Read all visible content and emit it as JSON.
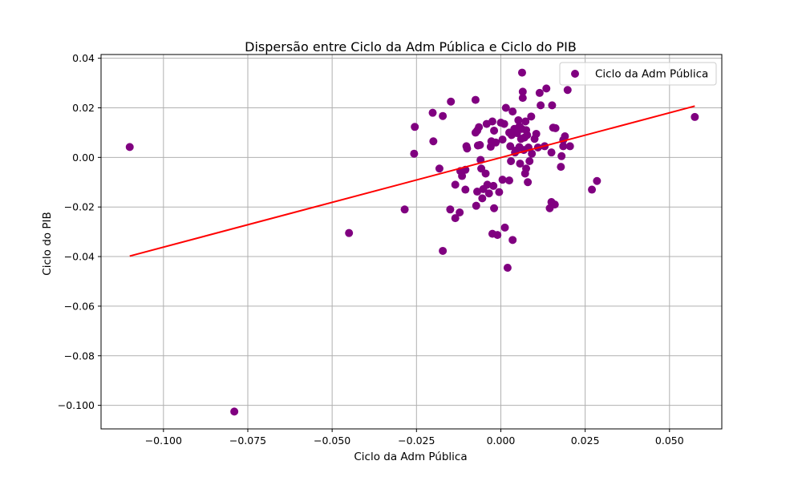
{
  "chart_data": {
    "type": "scatter",
    "title": "Dispersão entre Ciclo da Adm Pública e Ciclo do PIB",
    "xlabel": "Ciclo da Adm Pública",
    "ylabel": "Ciclo do PIB",
    "xlim": [
      -0.1185,
      0.0655
    ],
    "ylim": [
      -0.1095,
      0.0415
    ],
    "xticks": [
      -0.1,
      -0.075,
      -0.05,
      -0.025,
      0.0,
      0.025,
      0.05
    ],
    "xtick_labels": [
      "−0.100",
      "−0.075",
      "−0.050",
      "−0.025",
      "0.000",
      "0.025",
      "0.050"
    ],
    "yticks": [
      -0.1,
      -0.08,
      -0.06,
      -0.04,
      -0.02,
      0.0,
      0.02,
      0.04
    ],
    "ytick_labels": [
      "−0.100",
      "−0.08",
      "−0.06",
      "−0.04",
      "−0.02",
      "0.00",
      "0.02",
      "0.04"
    ],
    "grid": true,
    "legend_position": "top-right",
    "colors": {
      "points": "#800080",
      "trend": "#ff0000",
      "grid": "#b0b0b0"
    },
    "series": [
      {
        "name": "Ciclo da Adm Pública",
        "kind": "scatter",
        "points": [
          [
            -0.11,
            0.0042
          ],
          [
            -0.079,
            -0.1025
          ],
          [
            -0.045,
            -0.0305
          ],
          [
            -0.0285,
            -0.021
          ],
          [
            -0.0255,
            0.0123
          ],
          [
            -0.0257,
            0.0015
          ],
          [
            -0.0202,
            0.018
          ],
          [
            -0.02,
            0.0065
          ],
          [
            -0.0182,
            -0.0045
          ],
          [
            -0.0172,
            0.0167
          ],
          [
            -0.0172,
            -0.0377
          ],
          [
            -0.015,
            -0.021
          ],
          [
            -0.0148,
            0.0225
          ],
          [
            -0.0135,
            -0.011
          ],
          [
            -0.0135,
            -0.0245
          ],
          [
            -0.0122,
            -0.0222
          ],
          [
            -0.012,
            -0.0055
          ],
          [
            -0.0115,
            -0.0075
          ],
          [
            -0.0105,
            -0.013
          ],
          [
            -0.0105,
            -0.005
          ],
          [
            -0.0102,
            0.0045
          ],
          [
            -0.01,
            0.0036
          ],
          [
            -0.0075,
            0.0232
          ],
          [
            -0.0075,
            0.01
          ],
          [
            -0.007,
            0.0108
          ],
          [
            -0.0065,
            0.0122
          ],
          [
            -0.0073,
            -0.0195
          ],
          [
            -0.007,
            -0.0138
          ],
          [
            -0.0068,
            0.0048
          ],
          [
            -0.0062,
            0.005
          ],
          [
            -0.006,
            -0.001
          ],
          [
            -0.0058,
            -0.0045
          ],
          [
            -0.0055,
            -0.0165
          ],
          [
            -0.0052,
            -0.0128
          ],
          [
            -0.0045,
            -0.0065
          ],
          [
            -0.0042,
            0.0135
          ],
          [
            -0.004,
            -0.011
          ],
          [
            -0.0035,
            -0.0145
          ],
          [
            -0.003,
            0.0043
          ],
          [
            -0.0028,
            0.0065
          ],
          [
            -0.0025,
            0.0145
          ],
          [
            -0.0025,
            -0.0308
          ],
          [
            -0.0022,
            -0.0115
          ],
          [
            -0.002,
            0.0108
          ],
          [
            -0.002,
            -0.0205
          ],
          [
            -0.0015,
            0.006
          ],
          [
            -0.001,
            -0.0313
          ],
          [
            -0.0005,
            -0.014
          ],
          [
            0.0,
            0.014
          ],
          [
            0.0005,
            0.0072
          ],
          [
            0.0005,
            -0.009
          ],
          [
            0.001,
            0.0135
          ],
          [
            0.0012,
            -0.0283
          ],
          [
            0.0015,
            0.02
          ],
          [
            0.002,
            -0.0445
          ],
          [
            0.0025,
            0.01
          ],
          [
            0.0025,
            -0.0093
          ],
          [
            0.0028,
            0.0045
          ],
          [
            0.003,
            -0.0015
          ],
          [
            0.0032,
            0.009
          ],
          [
            0.0035,
            -0.0333
          ],
          [
            0.0035,
            0.0185
          ],
          [
            0.004,
            0.0115
          ],
          [
            0.0042,
            0.002
          ],
          [
            0.0045,
            0.0028
          ],
          [
            0.0048,
            0.0098
          ],
          [
            0.0052,
            0.015
          ],
          [
            0.0055,
            0.0125
          ],
          [
            0.0055,
            0.0042
          ],
          [
            0.0057,
            -0.0025
          ],
          [
            0.006,
            0.0075
          ],
          [
            0.0062,
            0.0115
          ],
          [
            0.0063,
            0.0342
          ],
          [
            0.0065,
            0.0265
          ],
          [
            0.0065,
            0.024
          ],
          [
            0.0068,
            0.003
          ],
          [
            0.007,
            0.008
          ],
          [
            0.0072,
            -0.0065
          ],
          [
            0.0073,
            0.0145
          ],
          [
            0.0075,
            0.011
          ],
          [
            0.0075,
            -0.0045
          ],
          [
            0.0078,
            0.009
          ],
          [
            0.008,
            -0.01
          ],
          [
            0.0082,
            0.004
          ],
          [
            0.0085,
            -0.0015
          ],
          [
            0.009,
            0.0165
          ],
          [
            0.0092,
            0.0015
          ],
          [
            0.01,
            0.0075
          ],
          [
            0.0105,
            0.0095
          ],
          [
            0.011,
            0.004
          ],
          [
            0.0115,
            0.026
          ],
          [
            0.0118,
            0.021
          ],
          [
            0.013,
            0.0045
          ],
          [
            0.0135,
            0.0278
          ],
          [
            0.0145,
            -0.0205
          ],
          [
            0.015,
            0.002
          ],
          [
            0.015,
            -0.018
          ],
          [
            0.0152,
            0.021
          ],
          [
            0.0155,
            0.012
          ],
          [
            0.016,
            -0.019
          ],
          [
            0.0162,
            0.0118
          ],
          [
            0.0178,
            -0.0038
          ],
          [
            0.018,
            0.0005
          ],
          [
            0.0185,
            0.0045
          ],
          [
            0.0185,
            0.007
          ],
          [
            0.019,
            0.0085
          ],
          [
            0.0198,
            0.0272
          ],
          [
            0.0205,
            0.0045
          ],
          [
            0.027,
            -0.013
          ],
          [
            0.0285,
            -0.0095
          ],
          [
            0.0575,
            0.0163
          ]
        ]
      },
      {
        "kind": "line",
        "points": [
          [
            -0.11,
            -0.0398
          ],
          [
            0.0575,
            0.0207
          ]
        ]
      }
    ]
  }
}
